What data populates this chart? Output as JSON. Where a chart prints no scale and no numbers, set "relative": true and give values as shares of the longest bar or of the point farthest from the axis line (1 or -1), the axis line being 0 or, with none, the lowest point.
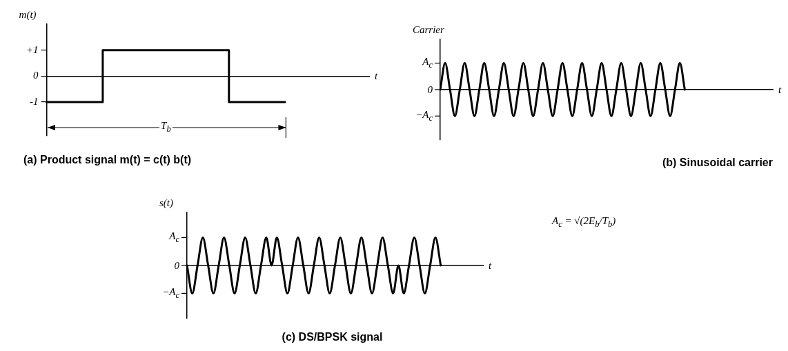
{
  "chart_data": [
    {
      "type": "step",
      "title": "(a) Product signal m(t) = c(t) b(t)",
      "ylabel": "m(t)",
      "xlabel": "t",
      "annotations": [
        "T$_{b}$"
      ],
      "categories": [
        null,
        null,
        null,
        null,
        null,
        null,
        null,
        null,
        null,
        null,
        null,
        null,
        null,
        null,
        null,
        null,
        null,
        null,
        null,
        null,
        null,
        null,
        null,
        null
      ],
      "values": [
        -1,
        -1,
        -1,
        -1,
        -1,
        1,
        1,
        1,
        1,
        1,
        1,
        1,
        1,
        1,
        -1,
        -1,
        -1,
        -1,
        null,
        null,
        null,
        null,
        null,
        null
      ],
      "color": "#000000",
      "ylim": [
        -2.3,
        2
      ],
      "yticks": [
        -1,
        0,
        {
          "value": 1,
          "label": "+1"
        }
      ]
    },
    {
      "type": "line",
      "title": "(b) Sinusoidal carrier",
      "ylabel": "Carrier",
      "xlabel": "t",
      "relative": true,
      "annotations": [
        "A$_{c}$",
        "0",
        "−A$_{c}$"
      ],
      "categories": [
        null,
        null,
        null,
        null,
        null,
        null,
        null,
        null,
        null,
        null,
        null,
        null,
        null,
        null,
        null,
        null,
        null,
        null,
        null,
        null,
        null,
        null,
        null,
        null,
        null,
        null,
        null,
        null,
        null,
        null,
        null,
        null,
        null,
        null,
        null,
        null,
        null,
        null,
        null,
        null,
        null,
        null,
        null,
        null,
        null,
        null,
        null,
        null,
        null,
        null,
        null,
        null,
        null,
        null,
        null,
        null,
        null,
        null,
        null,
        null,
        null,
        null,
        null,
        null,
        null,
        null,
        null,
        null,
        null
      ],
      "values": [
        0,
        1,
        0,
        -1,
        0,
        1,
        0,
        -1,
        0,
        1,
        0,
        -1,
        0,
        1,
        0,
        -1,
        0,
        1,
        0,
        -1,
        0,
        1,
        0,
        -1,
        0,
        1,
        0,
        -1,
        0,
        1,
        0,
        -1,
        0,
        1,
        0,
        -1,
        0,
        1,
        0,
        -1,
        0,
        1,
        0,
        -1,
        0,
        1,
        0,
        -1,
        0,
        1,
        0,
        null,
        null,
        null,
        null,
        null,
        null,
        null,
        null,
        null,
        null,
        null,
        null,
        null,
        null,
        null,
        null,
        null,
        null
      ],
      "color": "#000000"
    },
    {
      "type": "line",
      "title": "(c) DS/BPSK signal",
      "ylabel": "s(t)",
      "xlabel": "t",
      "relative": true,
      "annotations": [
        "A$_{c}$",
        "0",
        "−A$_{c}$",
        "A$_{c}$ = √(2E$_{b}$/T$_{b}$)"
      ],
      "categories": [
        null,
        null,
        null,
        null,
        null,
        null,
        null,
        null,
        null,
        null,
        null,
        null,
        null,
        null,
        null,
        null,
        null,
        null,
        null,
        null,
        null,
        null,
        null,
        null,
        null,
        null,
        null,
        null,
        null,
        null,
        null,
        null,
        null,
        null,
        null,
        null,
        null,
        null,
        null,
        null,
        null,
        null,
        null,
        null,
        null,
        null,
        null,
        null,
        null,
        null,
        null,
        null,
        null,
        null,
        null,
        null,
        null
      ],
      "values": [
        0,
        -1,
        0,
        1,
        0,
        -1,
        0,
        1,
        0,
        -1,
        0,
        1,
        0,
        -1,
        0,
        1,
        0,
        1,
        0,
        -1,
        0,
        1,
        0,
        -1,
        0,
        1,
        0,
        -1,
        0,
        1,
        0,
        -1,
        0,
        1,
        0,
        -1,
        0,
        1,
        0,
        -1,
        0,
        -1,
        0,
        1,
        0,
        -1,
        0,
        1,
        0,
        null,
        null,
        null,
        null,
        null,
        null,
        null,
        null
      ],
      "color": "#000000"
    }
  ]
}
